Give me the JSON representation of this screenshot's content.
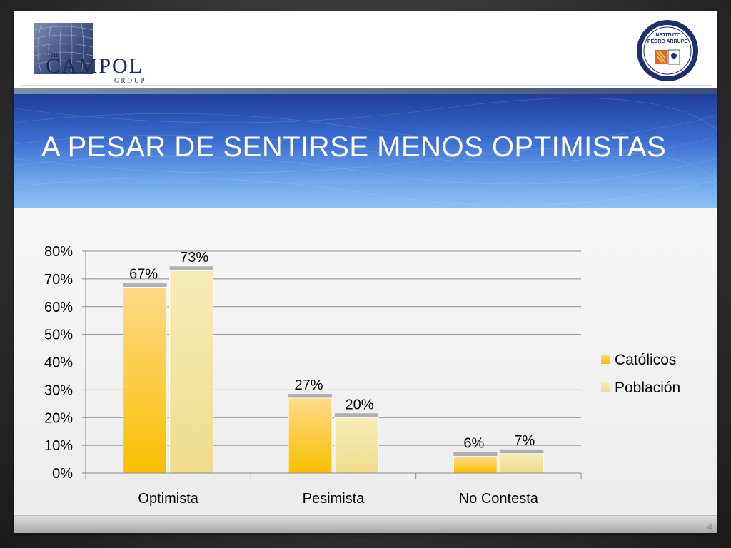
{
  "header": {
    "left_logo_text": "CAMPOL",
    "left_logo_the": "THE",
    "left_logo_group": "GROUP",
    "right_logo_line1": "INSTITUTO",
    "right_logo_line2": "PEDRO ARRUPE"
  },
  "slide": {
    "title": "A PESAR DE SENTIRSE MENOS OPTIMISTAS"
  },
  "colors": {
    "catolicos": "#f5c518",
    "poblacion": "#f2e3a0"
  },
  "chart_data": {
    "type": "bar",
    "title": "",
    "xlabel": "",
    "ylabel": "",
    "categories": [
      "Optimista",
      "Pesimista",
      "No Contesta"
    ],
    "series": [
      {
        "name": "Católicos",
        "values": [
          67,
          27,
          6
        ],
        "labels": [
          "67%",
          "27%",
          "6%"
        ]
      },
      {
        "name": "Población",
        "values": [
          73,
          20,
          7
        ],
        "labels": [
          "73%",
          "20%",
          "7%"
        ]
      }
    ],
    "ylim": [
      0,
      80
    ],
    "yticks": [
      0,
      10,
      20,
      30,
      40,
      50,
      60,
      70,
      80
    ],
    "ytick_labels": [
      "0%",
      "10%",
      "20%",
      "30%",
      "40%",
      "50%",
      "60%",
      "70%",
      "80%"
    ],
    "grid": true,
    "legend": "right"
  }
}
